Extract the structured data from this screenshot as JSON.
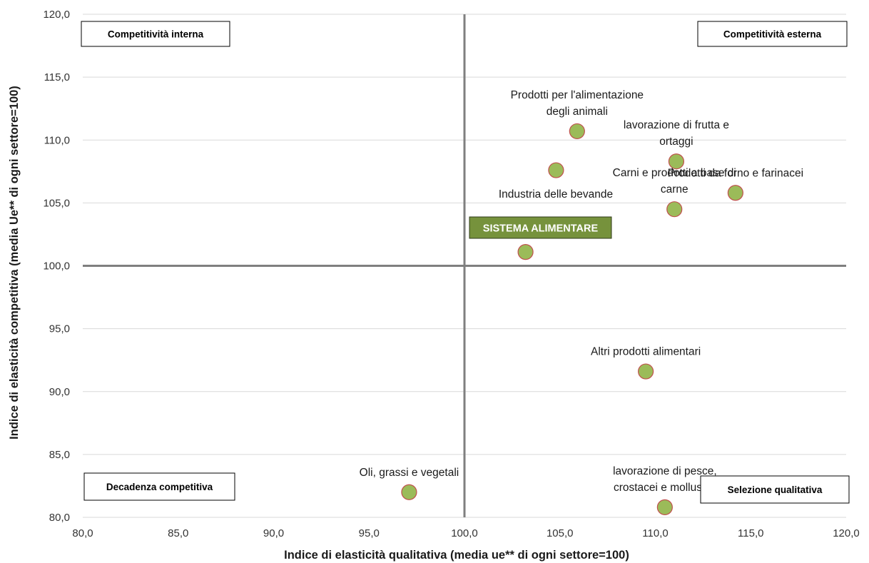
{
  "chart_data": {
    "type": "scatter",
    "xlabel": "Indice di elasticità qualitativa (media ue** di ogni settore=100)",
    "ylabel": "Indice di elasticità competitiva (media Ue** di ogni settore=100)",
    "xlim": [
      80,
      120
    ],
    "ylim": [
      80,
      120
    ],
    "xticks": [
      80,
      85,
      90,
      95,
      100,
      105,
      110,
      115,
      120
    ],
    "yticks": [
      80,
      85,
      90,
      95,
      100,
      105,
      110,
      115,
      120
    ],
    "xtick_labels": [
      "80,0",
      "85,0",
      "90,0",
      "95,0",
      "100,0",
      "105,0",
      "110,0",
      "115,0",
      "120,0"
    ],
    "ytick_labels": [
      "80,0",
      "85,0",
      "90,0",
      "95,0",
      "100,0",
      "105,0",
      "110,0",
      "115,0",
      "120,0"
    ],
    "reference_lines": {
      "x": 100,
      "y": 100
    },
    "grid": "horizontal",
    "marker_color": "#9bbb59",
    "marker_edge_color": "#c0504d",
    "points": [
      {
        "x": 105.9,
        "y": 110.7,
        "label": [
          "Prodotti per l'alimentazione",
          "degli animali"
        ]
      },
      {
        "x": 111.1,
        "y": 108.3,
        "label": [
          "lavorazione di frutta e",
          "ortaggi"
        ]
      },
      {
        "x": 104.8,
        "y": 107.6,
        "label": []
      },
      {
        "x": 114.2,
        "y": 105.8,
        "label": [
          "Prodotti da forno e farinacei"
        ]
      },
      {
        "x": 111.0,
        "y": 104.5,
        "label": [
          "Carni e prodotti a base di",
          "carne"
        ]
      },
      {
        "x": 103.2,
        "y": 101.1,
        "label": []
      },
      {
        "x": 109.5,
        "y": 91.6,
        "label": [
          "Altri prodotti alimentari"
        ]
      },
      {
        "x": 97.1,
        "y": 82.0,
        "label": [
          "Oli, grassi e vegetali"
        ]
      },
      {
        "x": 110.5,
        "y": 80.8,
        "label": [
          "lavorazione di pesce,",
          "crostacei e molluschi"
        ]
      }
    ],
    "free_labels": [
      {
        "text": "Industria delle bevande"
      }
    ],
    "highlight_label": {
      "text": "SISTEMA ALIMENTARE",
      "color": "#76923c"
    },
    "quadrant_labels": [
      {
        "text": "Competitività interna",
        "position": "top-left"
      },
      {
        "text": "Competitività esterna",
        "position": "top-right"
      },
      {
        "text": "Decadenza competitiva",
        "position": "bottom-left"
      },
      {
        "text": "Selezione qualitativa",
        "position": "bottom-right"
      }
    ]
  }
}
